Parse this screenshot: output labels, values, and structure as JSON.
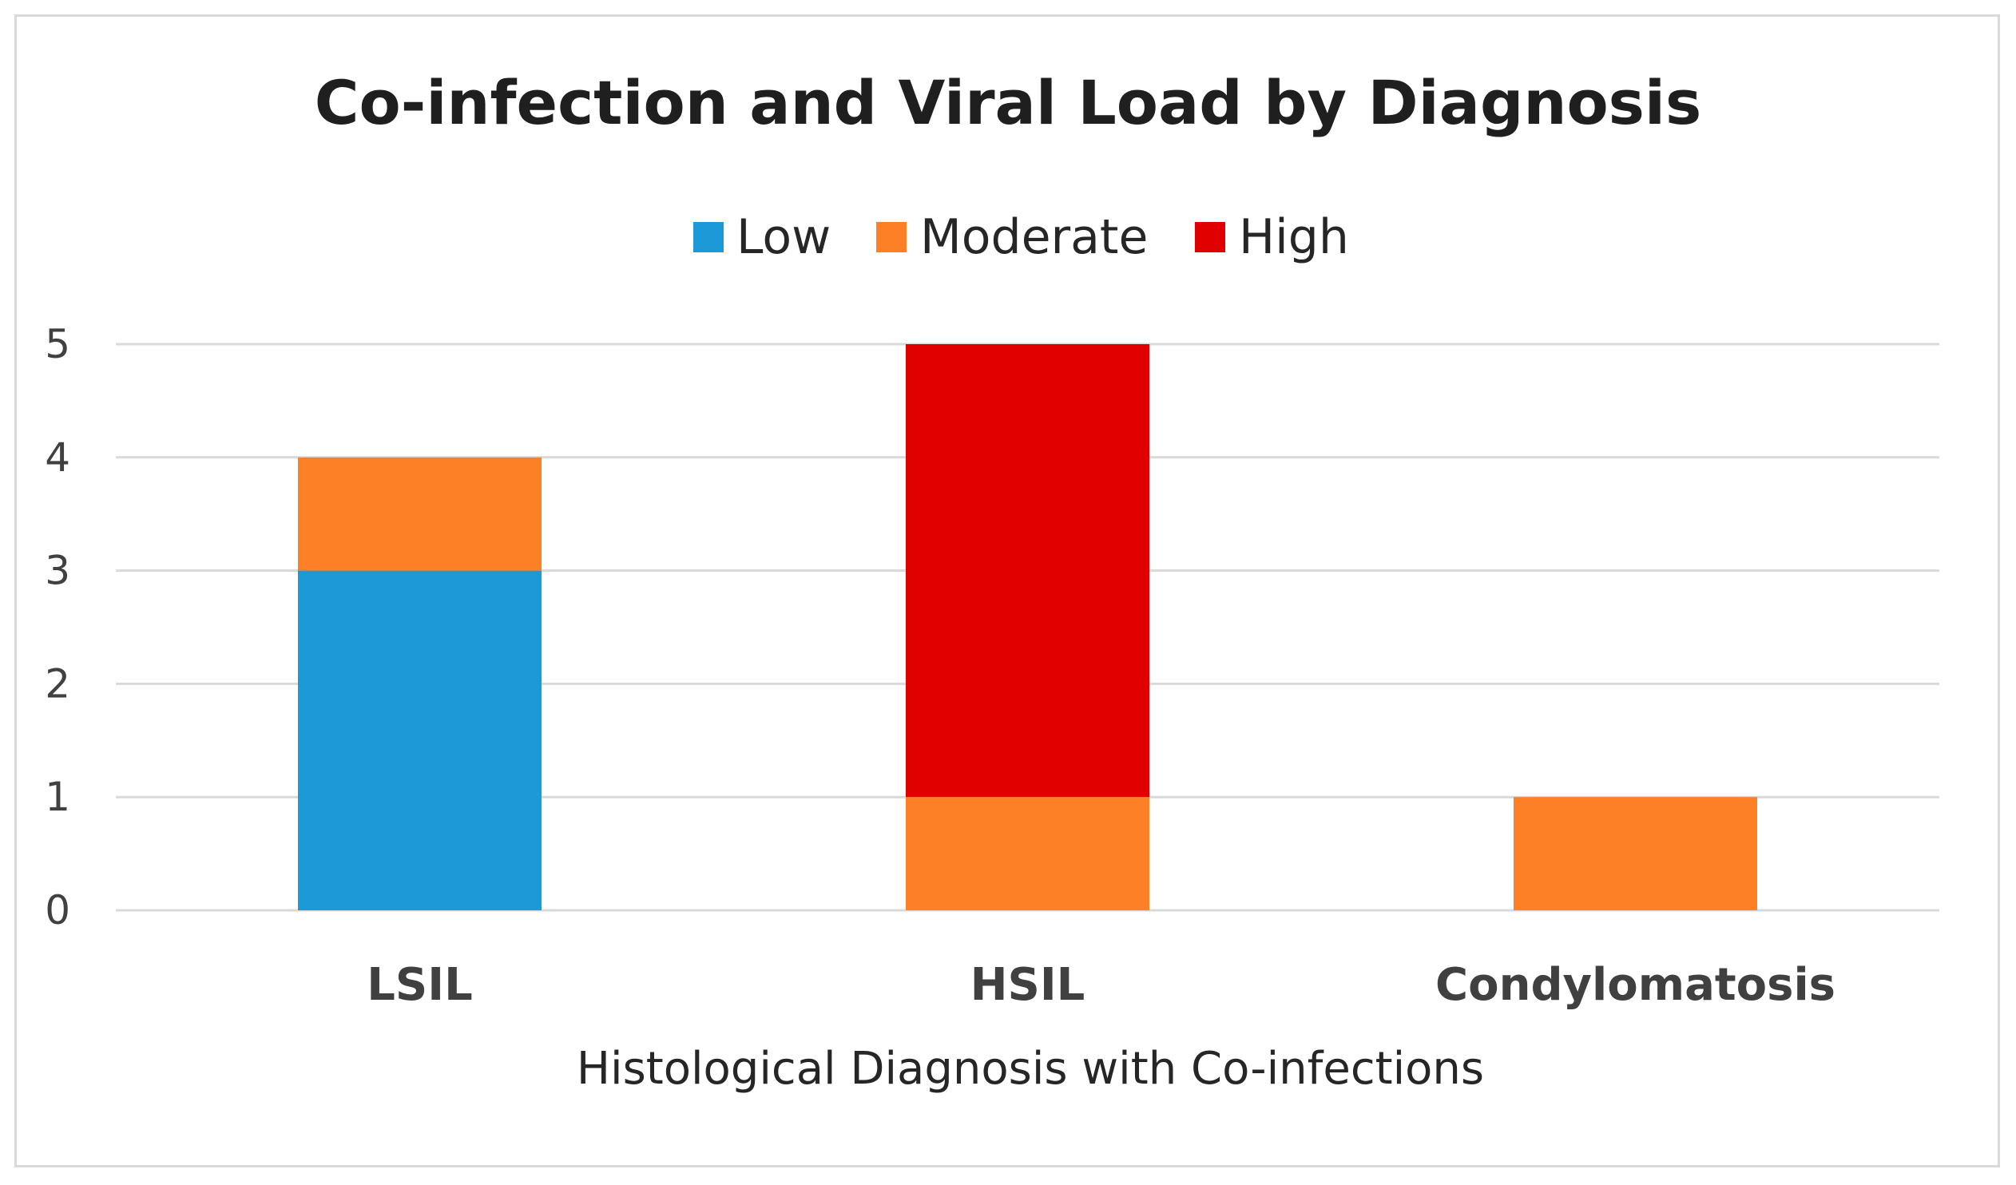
{
  "chart_data": {
    "type": "bar",
    "stacked": true,
    "title": "Co-infection and Viral Load by Diagnosis",
    "xlabel": "Histological Diagnosis with Co-infections",
    "ylabel": "",
    "categories": [
      "LSIL",
      "HSIL",
      "Condylomatosis"
    ],
    "series": [
      {
        "name": "Low",
        "color": "#1b9ad7",
        "values": [
          3,
          0,
          0
        ]
      },
      {
        "name": "Moderate",
        "color": "#fd7f26",
        "values": [
          1,
          1,
          1
        ]
      },
      {
        "name": "High",
        "color": "#e00000",
        "values": [
          0,
          4,
          0
        ]
      }
    ],
    "ylim": [
      0,
      5
    ],
    "yticks": [
      "0",
      "1",
      "2",
      "3",
      "4",
      "5"
    ],
    "grid": true,
    "legend_position": "top"
  }
}
